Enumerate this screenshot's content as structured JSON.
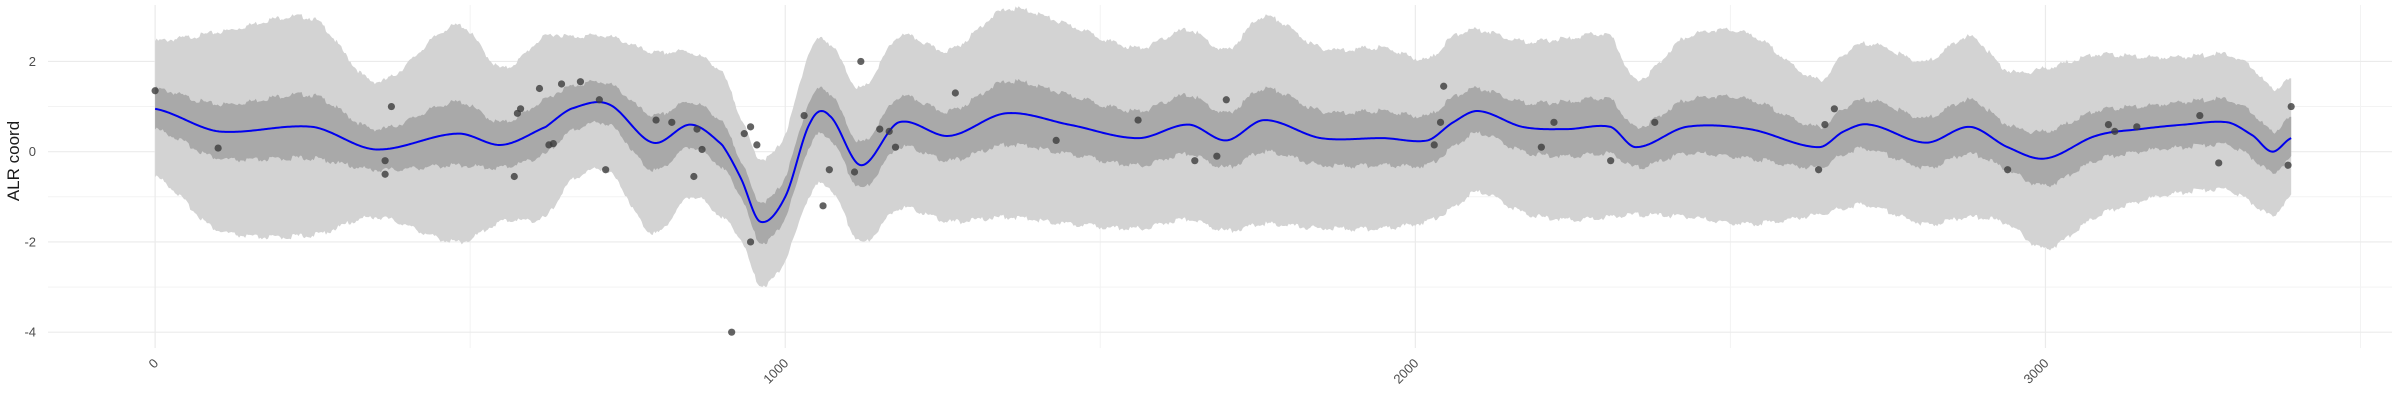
{
  "chart_data": {
    "type": "line",
    "title": "",
    "xlabel": "",
    "ylabel": "ALR coord",
    "xlim": [
      -170,
      3550
    ],
    "ylim": [
      -4.35,
      3.25
    ],
    "x_ticks": [
      0,
      1000,
      2000,
      3000
    ],
    "x_tick_labels": [
      "0",
      "1000",
      "2000",
      "3000"
    ],
    "y_ticks": [
      -4,
      -2,
      0,
      2
    ],
    "y_tick_labels": [
      "-4",
      "-2",
      "0",
      "2"
    ],
    "grid": true,
    "legend": "none",
    "colors": {
      "mean_line": "#0000ee",
      "inner_band": "#a9a9a9",
      "outer_band": "#d3d3d3",
      "points": "#3c3c3c",
      "grid": "#ebebeb"
    },
    "mean_curve": {
      "x": [
        0,
        100,
        250,
        350,
        480,
        550,
        620,
        660,
        720,
        790,
        850,
        900,
        930,
        960,
        1000,
        1040,
        1070,
        1120,
        1180,
        1260,
        1350,
        1450,
        1560,
        1640,
        1700,
        1760,
        1850,
        1950,
        2020,
        2060,
        2100,
        2170,
        2240,
        2310,
        2350,
        2430,
        2530,
        2640,
        2680,
        2720,
        2810,
        2880,
        2940,
        3000,
        3080,
        3150,
        3220,
        3290,
        3330,
        3360,
        3390
      ],
      "y": [
        0.95,
        0.45,
        0.55,
        0.05,
        0.4,
        0.15,
        0.55,
        0.95,
        1.05,
        0.2,
        0.6,
        0.15,
        -0.6,
        -1.55,
        -1.0,
        0.65,
        0.8,
        -0.3,
        0.65,
        0.35,
        0.85,
        0.6,
        0.3,
        0.6,
        0.25,
        0.7,
        0.3,
        0.3,
        0.25,
        0.65,
        0.9,
        0.55,
        0.5,
        0.55,
        0.1,
        0.55,
        0.5,
        0.1,
        0.45,
        0.6,
        0.2,
        0.55,
        0.1,
        -0.15,
        0.35,
        0.5,
        0.6,
        0.65,
        0.35,
        0.0,
        0.3
      ]
    },
    "band_inner_halfwidth": {
      "x": [
        0,
        100,
        250,
        350,
        480,
        550,
        620,
        660,
        720,
        790,
        850,
        900,
        930,
        960,
        1000,
        1040,
        1070,
        1120,
        1180,
        1260,
        1350,
        1450,
        1560,
        1640,
        1700,
        1760,
        1850,
        1950,
        2020,
        2060,
        2100,
        2170,
        2240,
        2310,
        2350,
        2430,
        2530,
        2640,
        2680,
        2720,
        2810,
        2880,
        2940,
        3000,
        3080,
        3150,
        3220,
        3290,
        3330,
        3360,
        3390
      ],
      "y": [
        0.45,
        0.6,
        0.7,
        0.45,
        0.7,
        0.5,
        0.6,
        0.5,
        0.45,
        0.6,
        0.5,
        0.5,
        0.4,
        0.45,
        0.45,
        0.5,
        0.5,
        0.5,
        0.55,
        0.55,
        0.7,
        0.65,
        0.6,
        0.65,
        0.6,
        0.7,
        0.6,
        0.6,
        0.55,
        0.55,
        0.5,
        0.55,
        0.6,
        0.6,
        0.45,
        0.6,
        0.65,
        0.45,
        0.5,
        0.55,
        0.55,
        0.6,
        0.5,
        0.6,
        0.55,
        0.5,
        0.5,
        0.5,
        0.5,
        0.45,
        0.45
      ]
    },
    "band_outer_halfwidth": {
      "x": [
        0,
        100,
        250,
        350,
        480,
        550,
        620,
        660,
        720,
        790,
        850,
        900,
        930,
        960,
        1000,
        1040,
        1070,
        1120,
        1180,
        1260,
        1350,
        1450,
        1560,
        1640,
        1700,
        1760,
        1850,
        1950,
        2020,
        2060,
        2100,
        2170,
        2240,
        2310,
        2350,
        2430,
        2530,
        2640,
        2680,
        2720,
        2810,
        2880,
        2940,
        3000,
        3080,
        3150,
        3220,
        3290,
        3330,
        3360,
        3390
      ],
      "y": [
        1.5,
        2.2,
        2.4,
        1.5,
        2.4,
        1.7,
        2.0,
        1.6,
        1.5,
        2.0,
        1.6,
        1.6,
        1.35,
        1.4,
        1.4,
        1.6,
        1.6,
        1.7,
        1.9,
        1.9,
        2.3,
        2.2,
        2.0,
        2.1,
        2.0,
        2.3,
        2.0,
        2.0,
        1.8,
        1.9,
        1.8,
        1.9,
        2.0,
        2.0,
        1.5,
        2.0,
        2.1,
        1.5,
        1.7,
        1.8,
        1.8,
        2.0,
        1.7,
        2.0,
        1.8,
        1.6,
        1.5,
        1.5,
        1.5,
        1.4,
        1.3
      ]
    },
    "points": [
      {
        "x": 0,
        "y": 1.35
      },
      {
        "x": 100,
        "y": 0.08
      },
      {
        "x": 365,
        "y": -0.2
      },
      {
        "x": 365,
        "y": -0.5
      },
      {
        "x": 375,
        "y": 1.0
      },
      {
        "x": 570,
        "y": -0.55
      },
      {
        "x": 575,
        "y": 0.85
      },
      {
        "x": 580,
        "y": 0.95
      },
      {
        "x": 610,
        "y": 1.4
      },
      {
        "x": 625,
        "y": 0.15
      },
      {
        "x": 632,
        "y": 0.18
      },
      {
        "x": 645,
        "y": 1.5
      },
      {
        "x": 675,
        "y": 1.55
      },
      {
        "x": 705,
        "y": 1.15
      },
      {
        "x": 715,
        "y": -0.4
      },
      {
        "x": 795,
        "y": 0.7
      },
      {
        "x": 820,
        "y": 0.65
      },
      {
        "x": 855,
        "y": -0.55
      },
      {
        "x": 860,
        "y": 0.5
      },
      {
        "x": 868,
        "y": 0.05
      },
      {
        "x": 915,
        "y": -4.0
      },
      {
        "x": 935,
        "y": 0.4
      },
      {
        "x": 945,
        "y": 0.55
      },
      {
        "x": 945,
        "y": -2.0
      },
      {
        "x": 955,
        "y": 0.15
      },
      {
        "x": 1030,
        "y": 0.8
      },
      {
        "x": 1060,
        "y": -1.2
      },
      {
        "x": 1070,
        "y": -0.4
      },
      {
        "x": 1110,
        "y": -0.45
      },
      {
        "x": 1120,
        "y": 2.0
      },
      {
        "x": 1150,
        "y": 0.5
      },
      {
        "x": 1165,
        "y": 0.45
      },
      {
        "x": 1175,
        "y": 0.1
      },
      {
        "x": 1270,
        "y": 1.3
      },
      {
        "x": 1430,
        "y": 0.25
      },
      {
        "x": 1560,
        "y": 0.7
      },
      {
        "x": 1650,
        "y": -0.2
      },
      {
        "x": 1685,
        "y": -0.1
      },
      {
        "x": 1700,
        "y": 1.15
      },
      {
        "x": 2030,
        "y": 0.15
      },
      {
        "x": 2040,
        "y": 0.65
      },
      {
        "x": 2045,
        "y": 1.45
      },
      {
        "x": 2200,
        "y": 0.1
      },
      {
        "x": 2220,
        "y": 0.65
      },
      {
        "x": 2310,
        "y": -0.2
      },
      {
        "x": 2380,
        "y": 0.65
      },
      {
        "x": 2640,
        "y": -0.4
      },
      {
        "x": 2650,
        "y": 0.6
      },
      {
        "x": 2665,
        "y": 0.95
      },
      {
        "x": 2940,
        "y": -0.4
      },
      {
        "x": 3100,
        "y": 0.6
      },
      {
        "x": 3110,
        "y": 0.45
      },
      {
        "x": 3145,
        "y": 0.55
      },
      {
        "x": 3245,
        "y": 0.8
      },
      {
        "x": 3275,
        "y": -0.25
      },
      {
        "x": 3385,
        "y": -0.3
      },
      {
        "x": 3390,
        "y": 1.0
      }
    ]
  }
}
